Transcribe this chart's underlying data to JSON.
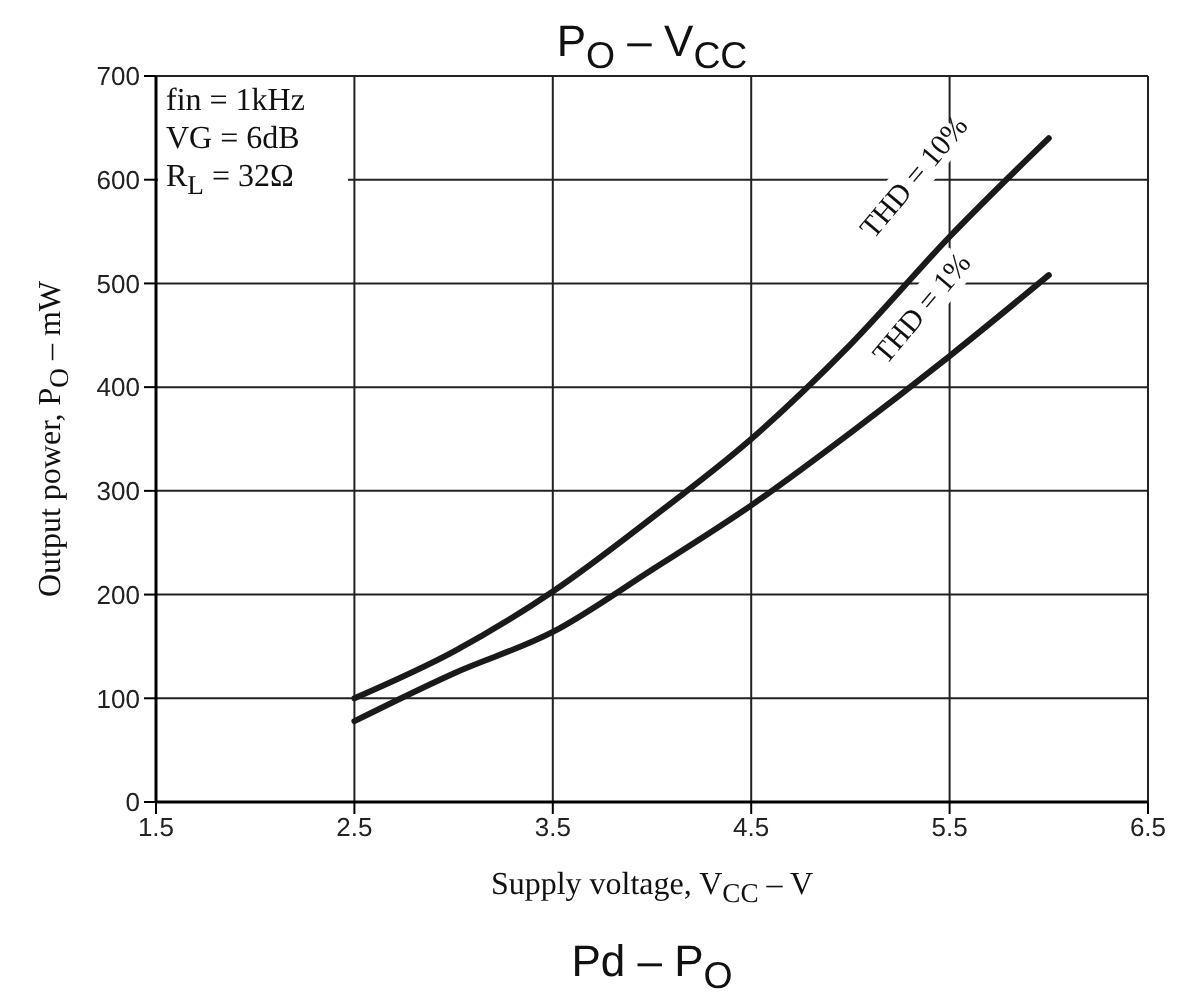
{
  "chart_data": {
    "type": "line",
    "title": "P$_{O}$ – V$_{CC}$",
    "xlabel": "Supply voltage, V$_{CC}$ – V",
    "ylabel": "Output power, P$_{O}$ – mW",
    "annotations": [
      "fin = 1kHz",
      "VG = 6dB",
      "R$_{L}$ = 32Ω",
      "Pd – P$_{O}$"
    ],
    "x": [
      2.5,
      3,
      3.5,
      4,
      4.5,
      5,
      5.5,
      6
    ],
    "series": [
      {
        "name": "THD = 10%",
        "color": "#1a1a1a",
        "values": [
          100,
          145,
          203,
          274,
          350,
          441,
          545,
          640
        ]
      },
      {
        "name": "THD = 1%",
        "color": "#1a1a1a",
        "values": [
          78,
          124,
          164,
          224,
          286,
          356,
          430,
          508
        ]
      }
    ],
    "xlim": [
      1.5,
      6.5
    ],
    "xticks": [
      1.5,
      2.5,
      3.5,
      4.5,
      5.5,
      6.5
    ],
    "ylim": [
      0,
      700
    ],
    "yticks": [
      0,
      100,
      200,
      300,
      400,
      500,
      600,
      700
    ],
    "grid": true,
    "marker": "none",
    "line_style": "solid"
  }
}
